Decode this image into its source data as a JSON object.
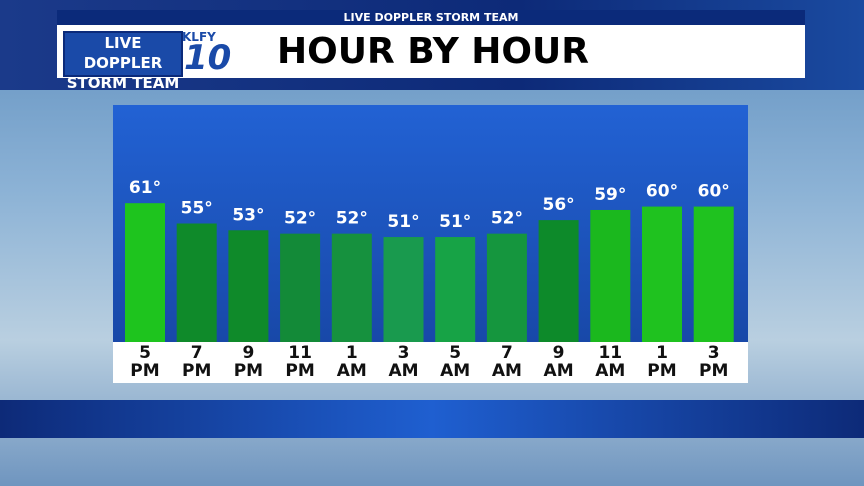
{
  "header": {
    "strip": "LIVE DOPPLER STORM TEAM",
    "logo_line1": "LIVE DOPPLER",
    "logo_line2": "STORM TEAM",
    "station": "KLFY",
    "channel": "10"
  },
  "chart_data": {
    "type": "bar",
    "title": "HOUR BY HOUR",
    "categories": [
      "5 PM",
      "7 PM",
      "9 PM",
      "11 PM",
      "1 AM",
      "3 AM",
      "5 AM",
      "7 AM",
      "9 AM",
      "11 AM",
      "1 PM",
      "3 PM"
    ],
    "values": [
      61,
      55,
      53,
      52,
      52,
      51,
      51,
      52,
      56,
      59,
      60,
      60
    ],
    "value_labels": [
      "61°",
      "55°",
      "53°",
      "52°",
      "52°",
      "51°",
      "51°",
      "52°",
      "56°",
      "59°",
      "60°",
      "60°"
    ],
    "colors": [
      "#1ec41e",
      "#0f8a2a",
      "#0f8a2a",
      "#138a38",
      "#16913e",
      "#199a4e",
      "#17a346",
      "#15963e",
      "#0d8a2a",
      "#1bb81e",
      "#1fc21f",
      "#1fc21f"
    ],
    "ylim": [
      20,
      90
    ]
  }
}
